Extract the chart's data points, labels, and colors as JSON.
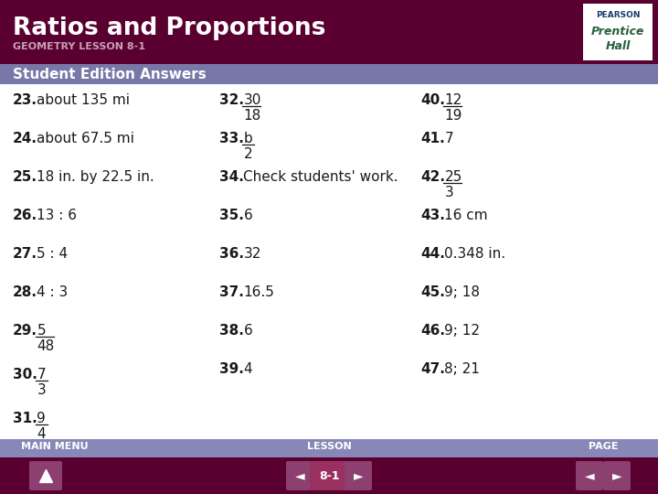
{
  "title": "Ratios and Proportions",
  "subtitle": "GEOMETRY LESSON 8-1",
  "section_header": "Student Edition Answers",
  "header_bg": "#5a0030",
  "section_bg": "#7878a8",
  "body_bg": "#ffffff",
  "footer_bg": "#5a0030",
  "footer_label_bg": "#8888b8",
  "answers": [
    {
      "num": "23.",
      "text": "about 135 mi",
      "frac": false
    },
    {
      "num": "24.",
      "text": "about 67.5 mi",
      "frac": false
    },
    {
      "num": "25.",
      "text": "18 in. by 22.5 in.",
      "frac": false
    },
    {
      "num": "26.",
      "text": "13 : 6",
      "frac": false
    },
    {
      "num": "27.",
      "text": "5 : 4",
      "frac": false
    },
    {
      "num": "28.",
      "text": "4 : 3",
      "frac": false
    },
    {
      "num": "29.",
      "text": "",
      "frac": true,
      "num_frac": "5",
      "den_frac": "48"
    },
    {
      "num": "30.",
      "text": "",
      "frac": true,
      "num_frac": "7",
      "den_frac": "3"
    },
    {
      "num": "31.",
      "text": "",
      "frac": true,
      "num_frac": "9",
      "den_frac": "4"
    }
  ],
  "answers2": [
    {
      "num": "32.",
      "text": "",
      "frac": true,
      "num_frac": "30",
      "den_frac": "18"
    },
    {
      "num": "33.",
      "text": "",
      "frac": true,
      "num_frac": "b",
      "den_frac": "2"
    },
    {
      "num": "34.",
      "text": "Check students' work.",
      "frac": false
    },
    {
      "num": "35.",
      "text": "6",
      "frac": false
    },
    {
      "num": "36.",
      "text": "32",
      "frac": false
    },
    {
      "num": "37.",
      "text": "16.5",
      "frac": false
    },
    {
      "num": "38.",
      "text": "6",
      "frac": false
    },
    {
      "num": "39.",
      "text": "4",
      "frac": false
    }
  ],
  "answers3": [
    {
      "num": "40.",
      "text": "",
      "frac": true,
      "num_frac": "12",
      "den_frac": "19"
    },
    {
      "num": "41.",
      "text": "7",
      "frac": false
    },
    {
      "num": "42.",
      "text": "",
      "frac": true,
      "num_frac": "25",
      "den_frac": "3"
    },
    {
      "num": "43.",
      "text": "16 cm",
      "frac": false
    },
    {
      "num": "44.",
      "text": "0.348 in.",
      "frac": false
    },
    {
      "num": "45.",
      "text": "9; 18",
      "frac": false
    },
    {
      "num": "46.",
      "text": "9; 12",
      "frac": false
    },
    {
      "num": "47.",
      "text": "8; 21",
      "frac": false
    }
  ],
  "lesson_label": "8-1",
  "title_color": "#ffffff",
  "subtitle_color": "#c8a0b8",
  "section_text_color": "#ffffff"
}
